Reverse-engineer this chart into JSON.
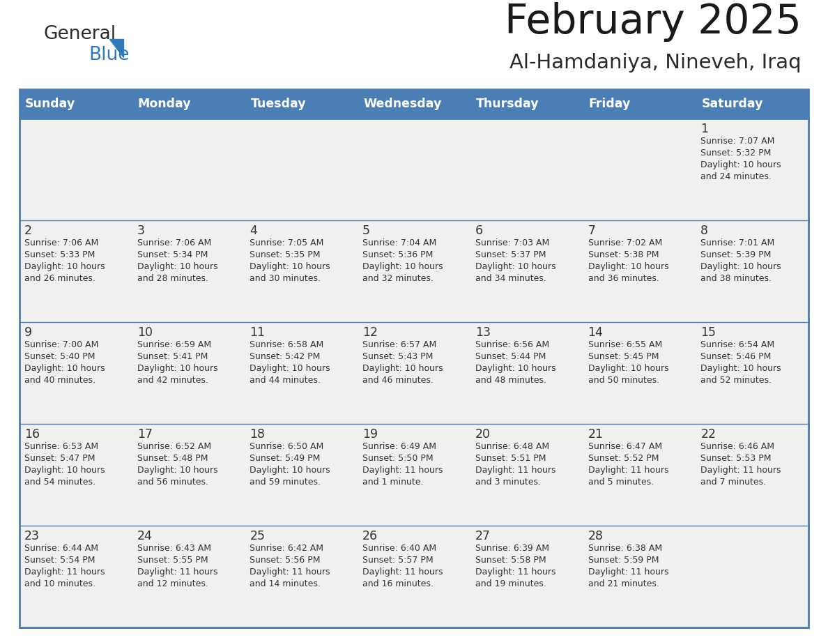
{
  "title": "February 2025",
  "subtitle": "Al-Hamdaniya, Nineveh, Iraq",
  "header_bg": "#4a7eb5",
  "header_text": "#ffffff",
  "cell_bg": "#f0f0f0",
  "cell_border": "#4a7eb5",
  "text_color": "#333333",
  "day_headers": [
    "Sunday",
    "Monday",
    "Tuesday",
    "Wednesday",
    "Thursday",
    "Friday",
    "Saturday"
  ],
  "days": [
    {
      "day": 1,
      "col": 6,
      "row": 0,
      "sunrise": "7:07 AM",
      "sunset": "5:32 PM",
      "daylight_h": "10 hours",
      "daylight_m": "24 minutes."
    },
    {
      "day": 2,
      "col": 0,
      "row": 1,
      "sunrise": "7:06 AM",
      "sunset": "5:33 PM",
      "daylight_h": "10 hours",
      "daylight_m": "26 minutes."
    },
    {
      "day": 3,
      "col": 1,
      "row": 1,
      "sunrise": "7:06 AM",
      "sunset": "5:34 PM",
      "daylight_h": "10 hours",
      "daylight_m": "28 minutes."
    },
    {
      "day": 4,
      "col": 2,
      "row": 1,
      "sunrise": "7:05 AM",
      "sunset": "5:35 PM",
      "daylight_h": "10 hours",
      "daylight_m": "30 minutes."
    },
    {
      "day": 5,
      "col": 3,
      "row": 1,
      "sunrise": "7:04 AM",
      "sunset": "5:36 PM",
      "daylight_h": "10 hours",
      "daylight_m": "32 minutes."
    },
    {
      "day": 6,
      "col": 4,
      "row": 1,
      "sunrise": "7:03 AM",
      "sunset": "5:37 PM",
      "daylight_h": "10 hours",
      "daylight_m": "34 minutes."
    },
    {
      "day": 7,
      "col": 5,
      "row": 1,
      "sunrise": "7:02 AM",
      "sunset": "5:38 PM",
      "daylight_h": "10 hours",
      "daylight_m": "36 minutes."
    },
    {
      "day": 8,
      "col": 6,
      "row": 1,
      "sunrise": "7:01 AM",
      "sunset": "5:39 PM",
      "daylight_h": "10 hours",
      "daylight_m": "38 minutes."
    },
    {
      "day": 9,
      "col": 0,
      "row": 2,
      "sunrise": "7:00 AM",
      "sunset": "5:40 PM",
      "daylight_h": "10 hours",
      "daylight_m": "40 minutes."
    },
    {
      "day": 10,
      "col": 1,
      "row": 2,
      "sunrise": "6:59 AM",
      "sunset": "5:41 PM",
      "daylight_h": "10 hours",
      "daylight_m": "42 minutes."
    },
    {
      "day": 11,
      "col": 2,
      "row": 2,
      "sunrise": "6:58 AM",
      "sunset": "5:42 PM",
      "daylight_h": "10 hours",
      "daylight_m": "44 minutes."
    },
    {
      "day": 12,
      "col": 3,
      "row": 2,
      "sunrise": "6:57 AM",
      "sunset": "5:43 PM",
      "daylight_h": "10 hours",
      "daylight_m": "46 minutes."
    },
    {
      "day": 13,
      "col": 4,
      "row": 2,
      "sunrise": "6:56 AM",
      "sunset": "5:44 PM",
      "daylight_h": "10 hours",
      "daylight_m": "48 minutes."
    },
    {
      "day": 14,
      "col": 5,
      "row": 2,
      "sunrise": "6:55 AM",
      "sunset": "5:45 PM",
      "daylight_h": "10 hours",
      "daylight_m": "50 minutes."
    },
    {
      "day": 15,
      "col": 6,
      "row": 2,
      "sunrise": "6:54 AM",
      "sunset": "5:46 PM",
      "daylight_h": "10 hours",
      "daylight_m": "52 minutes."
    },
    {
      "day": 16,
      "col": 0,
      "row": 3,
      "sunrise": "6:53 AM",
      "sunset": "5:47 PM",
      "daylight_h": "10 hours",
      "daylight_m": "54 minutes."
    },
    {
      "day": 17,
      "col": 1,
      "row": 3,
      "sunrise": "6:52 AM",
      "sunset": "5:48 PM",
      "daylight_h": "10 hours",
      "daylight_m": "56 minutes."
    },
    {
      "day": 18,
      "col": 2,
      "row": 3,
      "sunrise": "6:50 AM",
      "sunset": "5:49 PM",
      "daylight_h": "10 hours",
      "daylight_m": "59 minutes."
    },
    {
      "day": 19,
      "col": 3,
      "row": 3,
      "sunrise": "6:49 AM",
      "sunset": "5:50 PM",
      "daylight_h": "11 hours",
      "daylight_m": "1 minute."
    },
    {
      "day": 20,
      "col": 4,
      "row": 3,
      "sunrise": "6:48 AM",
      "sunset": "5:51 PM",
      "daylight_h": "11 hours",
      "daylight_m": "3 minutes."
    },
    {
      "day": 21,
      "col": 5,
      "row": 3,
      "sunrise": "6:47 AM",
      "sunset": "5:52 PM",
      "daylight_h": "11 hours",
      "daylight_m": "5 minutes."
    },
    {
      "day": 22,
      "col": 6,
      "row": 3,
      "sunrise": "6:46 AM",
      "sunset": "5:53 PM",
      "daylight_h": "11 hours",
      "daylight_m": "7 minutes."
    },
    {
      "day": 23,
      "col": 0,
      "row": 4,
      "sunrise": "6:44 AM",
      "sunset": "5:54 PM",
      "daylight_h": "11 hours",
      "daylight_m": "10 minutes."
    },
    {
      "day": 24,
      "col": 1,
      "row": 4,
      "sunrise": "6:43 AM",
      "sunset": "5:55 PM",
      "daylight_h": "11 hours",
      "daylight_m": "12 minutes."
    },
    {
      "day": 25,
      "col": 2,
      "row": 4,
      "sunrise": "6:42 AM",
      "sunset": "5:56 PM",
      "daylight_h": "11 hours",
      "daylight_m": "14 minutes."
    },
    {
      "day": 26,
      "col": 3,
      "row": 4,
      "sunrise": "6:40 AM",
      "sunset": "5:57 PM",
      "daylight_h": "11 hours",
      "daylight_m": "16 minutes."
    },
    {
      "day": 27,
      "col": 4,
      "row": 4,
      "sunrise": "6:39 AM",
      "sunset": "5:58 PM",
      "daylight_h": "11 hours",
      "daylight_m": "19 minutes."
    },
    {
      "day": 28,
      "col": 5,
      "row": 4,
      "sunrise": "6:38 AM",
      "sunset": "5:59 PM",
      "daylight_h": "11 hours",
      "daylight_m": "21 minutes."
    }
  ],
  "num_rows": 5,
  "num_cols": 7
}
